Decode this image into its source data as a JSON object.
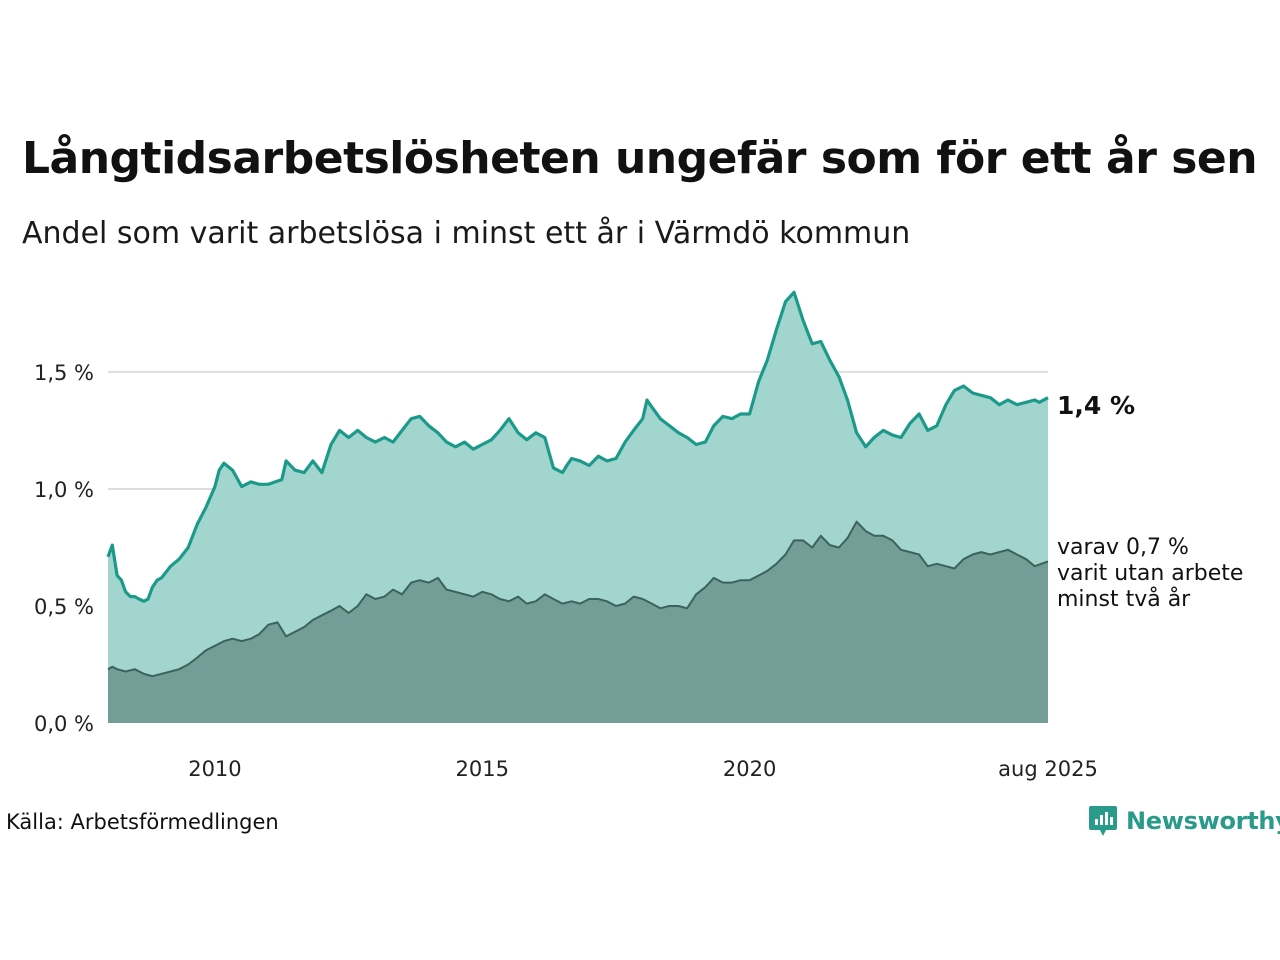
{
  "title": "Långtidsarbetslösheten ungefär som för ett år sen",
  "subtitle": "Andel som varit arbetslösa i minst ett år i Värmdö kommun",
  "source": "Källa: Arbetsförmedlingen",
  "logo_text": "Newsworthy",
  "colors": {
    "long_line": "#1b9a8a",
    "long_fill": "#a3d5cf",
    "two_line": "#3b635b",
    "two_fill": "#729e97",
    "grid": "#dddddd",
    "logo": "#2a9a8a"
  },
  "chart_data": {
    "type": "area",
    "y_ticks": [
      {
        "value": 0.0,
        "label": "0,0 %"
      },
      {
        "value": 0.5,
        "label": "0,5 %"
      },
      {
        "value": 1.0,
        "label": "1,0 %"
      },
      {
        "value": 1.5,
        "label": "1,5 %"
      }
    ],
    "x_ticks": [
      {
        "value": 2010,
        "label": "2010"
      },
      {
        "value": 2015,
        "label": "2015"
      },
      {
        "value": 2020,
        "label": "2020"
      },
      {
        "value": 2025.58,
        "label": "aug 2025"
      }
    ],
    "xlim": [
      2008.0,
      2025.58
    ],
    "ylim": [
      0,
      1.85
    ],
    "grid": true,
    "end_labels": {
      "main": "1,4 %",
      "sub": [
        "varav 0,7 %",
        "varit utan arbete",
        "minst två år"
      ]
    },
    "series": [
      {
        "key": "long",
        "x": [
          2008.0,
          2008.08,
          2008.17,
          2008.25,
          2008.33,
          2008.42,
          2008.5,
          2008.58,
          2008.67,
          2008.75,
          2008.83,
          2008.92,
          2009.0,
          2009.17,
          2009.33,
          2009.5,
          2009.67,
          2009.83,
          2010.0,
          2010.08,
          2010.17,
          2010.33,
          2010.5,
          2010.67,
          2010.83,
          2011.0,
          2011.25,
          2011.33,
          2011.5,
          2011.67,
          2011.83,
          2012.0,
          2012.17,
          2012.33,
          2012.5,
          2012.67,
          2012.83,
          2013.0,
          2013.17,
          2013.33,
          2013.5,
          2013.67,
          2013.83,
          2014.0,
          2014.17,
          2014.33,
          2014.5,
          2014.67,
          2014.83,
          2015.0,
          2015.17,
          2015.33,
          2015.5,
          2015.67,
          2015.83,
          2016.0,
          2016.17,
          2016.33,
          2016.5,
          2016.58,
          2016.67,
          2016.83,
          2017.0,
          2017.17,
          2017.33,
          2017.5,
          2017.67,
          2017.83,
          2018.0,
          2018.08,
          2018.17,
          2018.33,
          2018.5,
          2018.67,
          2018.83,
          2019.0,
          2019.17,
          2019.33,
          2019.5,
          2019.67,
          2019.83,
          2020.0,
          2020.17,
          2020.33,
          2020.5,
          2020.67,
          2020.83,
          2021.0,
          2021.17,
          2021.33,
          2021.5,
          2021.67,
          2021.83,
          2022.0,
          2022.17,
          2022.33,
          2022.5,
          2022.67,
          2022.83,
          2023.0,
          2023.17,
          2023.33,
          2023.5,
          2023.67,
          2023.83,
          2024.0,
          2024.17,
          2024.33,
          2024.5,
          2024.67,
          2024.83,
          2025.0,
          2025.17,
          2025.33,
          2025.42,
          2025.58
        ],
        "values": [
          0.71,
          0.76,
          0.63,
          0.61,
          0.56,
          0.54,
          0.54,
          0.53,
          0.52,
          0.53,
          0.58,
          0.61,
          0.62,
          0.67,
          0.7,
          0.75,
          0.85,
          0.92,
          1.01,
          1.08,
          1.11,
          1.08,
          1.01,
          1.03,
          1.02,
          1.02,
          1.04,
          1.12,
          1.08,
          1.07,
          1.12,
          1.07,
          1.19,
          1.25,
          1.22,
          1.25,
          1.22,
          1.2,
          1.22,
          1.2,
          1.25,
          1.3,
          1.31,
          1.27,
          1.24,
          1.2,
          1.18,
          1.2,
          1.17,
          1.19,
          1.21,
          1.25,
          1.3,
          1.24,
          1.21,
          1.24,
          1.22,
          1.09,
          1.07,
          1.1,
          1.13,
          1.12,
          1.1,
          1.14,
          1.12,
          1.13,
          1.2,
          1.25,
          1.3,
          1.38,
          1.35,
          1.3,
          1.27,
          1.24,
          1.22,
          1.19,
          1.2,
          1.27,
          1.31,
          1.3,
          1.32,
          1.32,
          1.46,
          1.55,
          1.68,
          1.8,
          1.84,
          1.72,
          1.62,
          1.63,
          1.55,
          1.48,
          1.38,
          1.24,
          1.18,
          1.22,
          1.25,
          1.23,
          1.22,
          1.28,
          1.32,
          1.25,
          1.27,
          1.36,
          1.42,
          1.44,
          1.41,
          1.4,
          1.39,
          1.36,
          1.38,
          1.36,
          1.37,
          1.38,
          1.37,
          1.39
        ]
      },
      {
        "key": "two",
        "x": [
          2008.0,
          2008.08,
          2008.17,
          2008.33,
          2008.5,
          2008.67,
          2008.83,
          2009.0,
          2009.17,
          2009.33,
          2009.5,
          2009.67,
          2009.83,
          2010.0,
          2010.17,
          2010.33,
          2010.5,
          2010.67,
          2010.83,
          2011.0,
          2011.17,
          2011.33,
          2011.5,
          2011.67,
          2011.83,
          2012.0,
          2012.17,
          2012.33,
          2012.5,
          2012.67,
          2012.83,
          2013.0,
          2013.17,
          2013.33,
          2013.5,
          2013.67,
          2013.83,
          2014.0,
          2014.17,
          2014.33,
          2014.5,
          2014.67,
          2014.83,
          2015.0,
          2015.17,
          2015.33,
          2015.5,
          2015.67,
          2015.83,
          2016.0,
          2016.17,
          2016.33,
          2016.5,
          2016.67,
          2016.83,
          2017.0,
          2017.17,
          2017.33,
          2017.5,
          2017.67,
          2017.83,
          2018.0,
          2018.17,
          2018.33,
          2018.5,
          2018.67,
          2018.83,
          2019.0,
          2019.17,
          2019.33,
          2019.5,
          2019.67,
          2019.83,
          2020.0,
          2020.17,
          2020.33,
          2020.5,
          2020.67,
          2020.83,
          2021.0,
          2021.17,
          2021.33,
          2021.5,
          2021.67,
          2021.83,
          2022.0,
          2022.17,
          2022.33,
          2022.5,
          2022.67,
          2022.83,
          2023.0,
          2023.17,
          2023.33,
          2023.5,
          2023.67,
          2023.83,
          2024.0,
          2024.17,
          2024.33,
          2024.5,
          2024.67,
          2024.83,
          2025.0,
          2025.17,
          2025.33,
          2025.58
        ],
        "values": [
          0.23,
          0.24,
          0.23,
          0.22,
          0.23,
          0.21,
          0.2,
          0.21,
          0.22,
          0.23,
          0.25,
          0.28,
          0.31,
          0.33,
          0.35,
          0.36,
          0.35,
          0.36,
          0.38,
          0.42,
          0.43,
          0.37,
          0.39,
          0.41,
          0.44,
          0.46,
          0.48,
          0.5,
          0.47,
          0.5,
          0.55,
          0.53,
          0.54,
          0.57,
          0.55,
          0.6,
          0.61,
          0.6,
          0.62,
          0.57,
          0.56,
          0.55,
          0.54,
          0.56,
          0.55,
          0.53,
          0.52,
          0.54,
          0.51,
          0.52,
          0.55,
          0.53,
          0.51,
          0.52,
          0.51,
          0.53,
          0.53,
          0.52,
          0.5,
          0.51,
          0.54,
          0.53,
          0.51,
          0.49,
          0.5,
          0.5,
          0.49,
          0.55,
          0.58,
          0.62,
          0.6,
          0.6,
          0.61,
          0.61,
          0.63,
          0.65,
          0.68,
          0.72,
          0.78,
          0.78,
          0.75,
          0.8,
          0.76,
          0.75,
          0.79,
          0.86,
          0.82,
          0.8,
          0.8,
          0.78,
          0.74,
          0.73,
          0.72,
          0.67,
          0.68,
          0.67,
          0.66,
          0.7,
          0.72,
          0.73,
          0.72,
          0.73,
          0.74,
          0.72,
          0.7,
          0.67,
          0.69
        ]
      }
    ]
  }
}
